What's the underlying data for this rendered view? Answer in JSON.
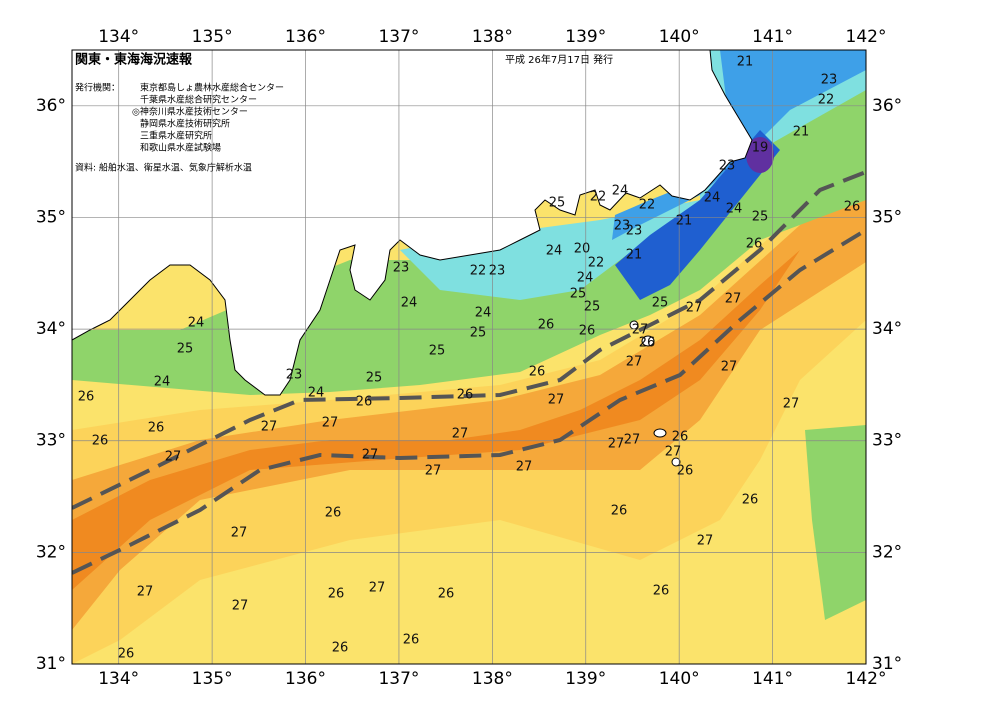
{
  "header": {
    "title": "関東・東海海況速報",
    "date": "平成 26年7月17日 発行",
    "issuer_label": "発行機関：",
    "issuers": [
      "東京都島しょ農林水産総合センター",
      "千葉県水産総合研究センター",
      "◎神奈川県水産技術センター",
      "静岡県水産技術研究所",
      "三重県水産研究所",
      "和歌山県水産試験場"
    ],
    "source": "資料: 船舶水温、衛星水温、気象庁解析水温"
  },
  "map": {
    "lonlim": [
      133.5,
      142
    ],
    "latlim": [
      31,
      36.5
    ],
    "lon_ticks": [
      {
        "value": 134,
        "label": "134°"
      },
      {
        "value": 135,
        "label": "135°"
      },
      {
        "value": 136,
        "label": "136°"
      },
      {
        "value": 137,
        "label": "137°"
      },
      {
        "value": 138,
        "label": "138°"
      },
      {
        "value": 139,
        "label": "139°"
      },
      {
        "value": 140,
        "label": "140°"
      },
      {
        "value": 141,
        "label": "141°"
      },
      {
        "value": 142,
        "label": "142°"
      }
    ],
    "lat_ticks": [
      {
        "value": 31,
        "label": "31°"
      },
      {
        "value": 32,
        "label": "32°"
      },
      {
        "value": 33,
        "label": "33°"
      },
      {
        "value": 34,
        "label": "34°"
      },
      {
        "value": 35,
        "label": "35°"
      },
      {
        "value": 36,
        "label": "36°"
      }
    ],
    "temperature_labels": [
      21,
      23,
      22,
      21,
      19,
      23,
      24,
      24,
      25,
      26,
      26,
      22,
      24,
      22,
      21,
      23,
      23,
      25,
      20,
      24,
      22,
      24,
      25,
      25,
      21,
      25,
      23,
      22,
      23,
      24,
      24,
      25,
      25,
      26,
      26,
      27,
      27,
      26,
      27,
      27,
      24,
      25,
      24,
      23,
      24,
      25,
      26,
      26,
      26,
      27,
      26,
      26,
      26,
      27,
      27,
      27,
      27,
      27,
      27,
      27,
      27,
      27,
      26,
      27,
      26,
      27,
      26,
      26,
      27,
      26,
      27,
      27,
      27,
      27,
      26,
      26,
      26,
      26,
      26,
      26,
      27
    ]
  }
}
